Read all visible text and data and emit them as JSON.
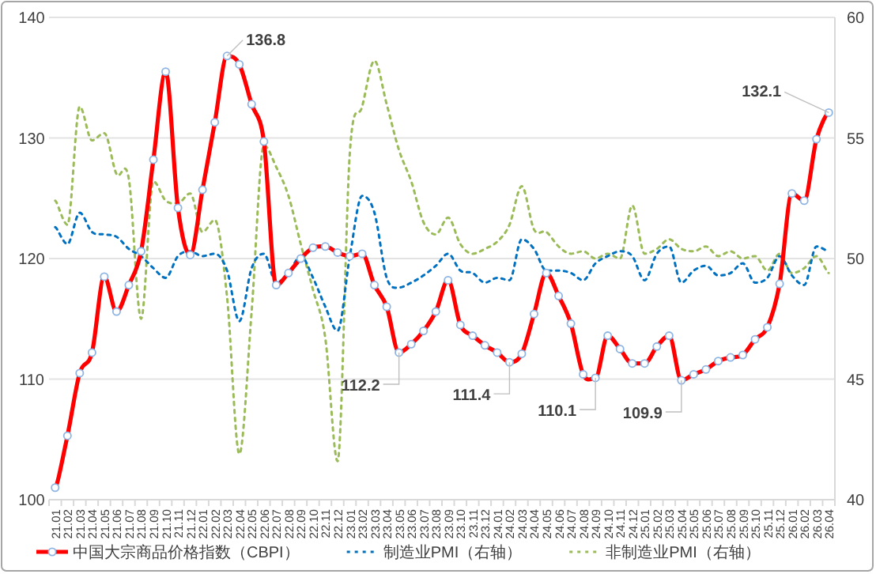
{
  "chart_data": {
    "type": "line",
    "categories": [
      "21.01",
      "21.02",
      "21.03",
      "21.04",
      "21.05",
      "21.06",
      "21.07",
      "21.08",
      "21.09",
      "21.10",
      "21.11",
      "21.12",
      "22.01",
      "22.02",
      "22.03",
      "22.04",
      "22.05",
      "22.06",
      "22.07",
      "22.08",
      "22.09",
      "22.10",
      "22.11",
      "22.12",
      "23.01",
      "23.02",
      "23.03",
      "23.04",
      "23.05",
      "23.06",
      "23.07",
      "23.08",
      "23.09",
      "23.10",
      "23.11",
      "23.12",
      "24.01",
      "24.02",
      "24.03",
      "24.04",
      "24.05",
      "24.06",
      "24.07",
      "24.08",
      "24.09",
      "24.10",
      "24.11",
      "24.12",
      "25.01",
      "25.02",
      "25.03",
      "25.04",
      "25.05",
      "25.06",
      "25.07",
      "25.08",
      "25.09",
      "25.10",
      "25.11",
      "25.12",
      "26.01",
      "26.02",
      "26.03",
      "26.04"
    ],
    "series": [
      {
        "name": "中国大宗商品价格指数（CBPI）",
        "color": "#ff0000",
        "marker": "circle",
        "line_style": "solid",
        "values": [
          101.0,
          105.3,
          110.5,
          112.2,
          118.5,
          115.6,
          117.8,
          120.6,
          128.2,
          135.5,
          124.2,
          120.3,
          125.7,
          131.3,
          136.8,
          136.1,
          132.8,
          129.7,
          117.8,
          118.8,
          120.0,
          120.9,
          121.0,
          120.5,
          120.2,
          120.4,
          117.8,
          116.0,
          112.2,
          112.9,
          114.0,
          115.6,
          118.2,
          114.5,
          113.6,
          112.8,
          112.2,
          111.4,
          112.1,
          115.4,
          118.8,
          116.9,
          114.6,
          110.4,
          110.1,
          113.6,
          112.5,
          111.3,
          111.3,
          112.7,
          113.6,
          109.9,
          110.4,
          110.8,
          111.5,
          111.8,
          112.0,
          113.3,
          114.3,
          117.9,
          125.4,
          124.8,
          129.9,
          132.1
        ]
      },
      {
        "name": "制造业PMI（右轴）",
        "color": "#0070c0",
        "axis": "y2",
        "marker": "none",
        "line_style": "dashed",
        "values": [
          51.3,
          50.6,
          51.9,
          51.1,
          51.0,
          50.9,
          50.4,
          50.1,
          49.6,
          49.2,
          50.1,
          50.3,
          50.1,
          50.2,
          49.5,
          47.4,
          49.6,
          50.2,
          49.0,
          49.4,
          50.1,
          49.2,
          48.0,
          47.0,
          50.1,
          52.6,
          51.9,
          49.2,
          48.8,
          49.0,
          49.3,
          49.7,
          50.2,
          49.5,
          49.4,
          49.0,
          49.2,
          49.1,
          50.8,
          50.4,
          49.5,
          49.5,
          49.4,
          49.1,
          49.8,
          50.1,
          50.3,
          50.1,
          49.1,
          50.2,
          50.5,
          49.0,
          49.5,
          49.7,
          49.3,
          49.4,
          49.8,
          49.0,
          49.2,
          50.1,
          49.3,
          48.9,
          50.5,
          50.3
        ]
      },
      {
        "name": "非制造业PMI（右轴）",
        "color": "#9bbb59",
        "axis": "y2",
        "marker": "none",
        "line_style": "dashed",
        "values": [
          52.4,
          51.4,
          56.3,
          54.9,
          55.2,
          53.5,
          53.3,
          47.5,
          53.2,
          52.4,
          52.3,
          52.7,
          51.1,
          51.6,
          48.4,
          41.9,
          47.8,
          54.7,
          53.8,
          52.6,
          50.6,
          48.7,
          46.7,
          41.6,
          54.4,
          56.3,
          58.2,
          56.4,
          54.5,
          53.2,
          51.5,
          51.0,
          51.7,
          50.6,
          50.2,
          50.4,
          50.7,
          51.4,
          53.0,
          51.2,
          51.1,
          50.5,
          50.2,
          50.3,
          50.0,
          50.2,
          50.0,
          52.2,
          50.2,
          50.4,
          50.8,
          50.4,
          50.3,
          50.5,
          50.1,
          50.3,
          50.0,
          50.1,
          49.5,
          50.2,
          49.4,
          49.6,
          50.1,
          49.4
        ]
      }
    ],
    "ylim": [
      100,
      140
    ],
    "yticks": [
      100,
      110,
      120,
      130,
      140
    ],
    "y2lim": [
      40,
      60
    ],
    "y2ticks": [
      40,
      45,
      50,
      55,
      60
    ],
    "grid": "y",
    "legend": "bottom",
    "annotations": [
      {
        "text": "136.8",
        "x": "22.03",
        "y": 136.8
      },
      {
        "text": "112.2",
        "x": "23.05",
        "y": 112.2
      },
      {
        "text": "111.4",
        "x": "24.02",
        "y": 111.4
      },
      {
        "text": "110.1",
        "x": "24.09",
        "y": 110.1
      },
      {
        "text": "109.9",
        "x": "25.04",
        "y": 109.9
      },
      {
        "text": "132.1",
        "x": "26.04",
        "y": 132.1
      }
    ]
  }
}
